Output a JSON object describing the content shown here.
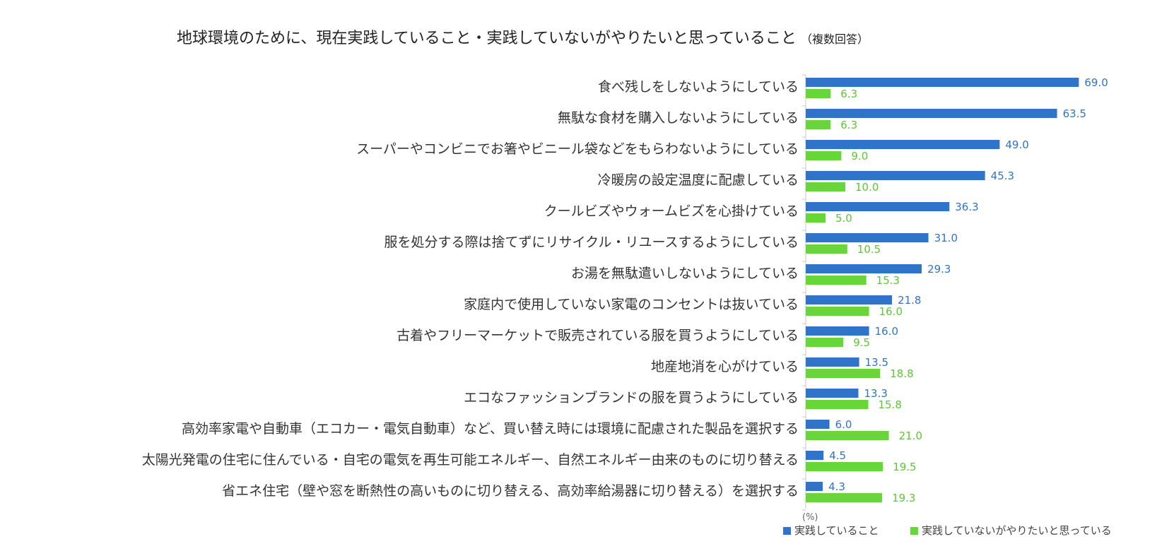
{
  "chart_data": {
    "type": "bar",
    "orientation": "horizontal",
    "title": "地球環境のために、現在実践していること・実践していないがやりたいと思っていること",
    "title_note": "（複数回答）",
    "unit_label": "(%)",
    "categories": [
      "食べ残しをしないようにしている",
      "無駄な食材を購入しないようにしている",
      "スーパーやコンビニでお箸やビニール袋などをもらわないようにしている",
      "冷暖房の設定温度に配慮している",
      "クールビズやウォームビズを心掛けている",
      "服を処分する際は捨てずにリサイクル・リユースするようにしている",
      "お湯を無駄遣いしないようにしている",
      "家庭内で使用していない家電のコンセントは抜いている",
      "古着やフリーマーケットで販売されている服を買うようにしている",
      "地産地消を心がけている",
      "エコなファッションブランドの服を買うようにしている",
      "高効率家電や自動車（エコカー・電気自動車）など、買い替え時には環境に配慮された製品を選択する",
      "太陽光発電の住宅に住んでいる・自宅の電気を再生可能エネルギー、自然エネルギー由来のものに切り替える",
      "省エネ住宅（壁や窓を断熱性の高いものに切り替える、高効率給湯器に切り替える）を選択する"
    ],
    "series": [
      {
        "name": "実践していること",
        "color": "#2f74c8",
        "label_color": "#2f74c8",
        "values": [
          69.0,
          63.5,
          49.0,
          45.3,
          36.3,
          31.0,
          29.3,
          21.8,
          16.0,
          13.5,
          13.3,
          6.0,
          4.5,
          4.3
        ]
      },
      {
        "name": "実践していないがやりたいと思っている",
        "color": "#66d63a",
        "label_color": "#5cc734",
        "values": [
          6.3,
          6.3,
          9.0,
          10.0,
          5.0,
          10.5,
          15.3,
          16.0,
          9.5,
          18.8,
          15.8,
          21.0,
          19.5,
          19.3
        ]
      }
    ],
    "xlim": [
      0,
      80
    ],
    "legend_position": "bottom-right",
    "grid": false
  }
}
